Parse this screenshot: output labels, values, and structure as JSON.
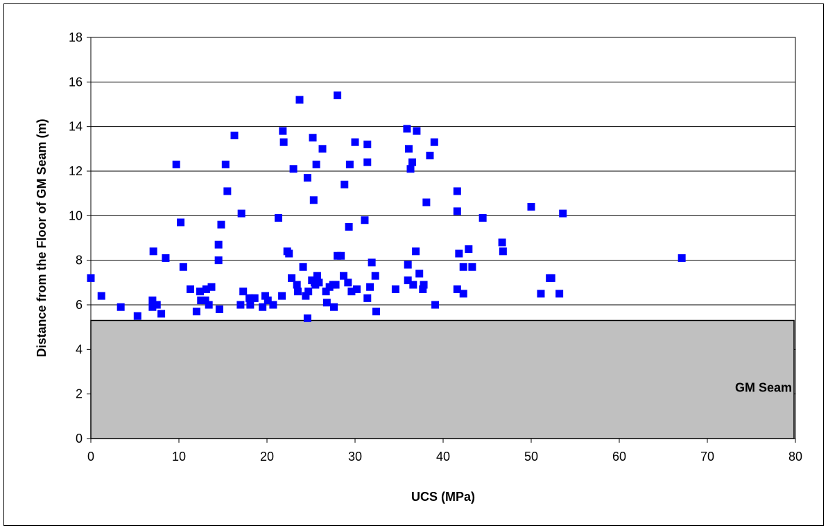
{
  "chart_data": {
    "type": "scatter",
    "title": "",
    "xlabel": "UCS (MPa)",
    "ylabel": "Distance from the Floor of GM Seam (m)",
    "xlim": [
      0,
      80
    ],
    "ylim": [
      0,
      18
    ],
    "xticks": [
      0,
      10,
      20,
      30,
      40,
      50,
      60,
      70,
      80
    ],
    "yticks": [
      0,
      2,
      4,
      6,
      8,
      10,
      12,
      14,
      16,
      18
    ],
    "grid": "horizontal",
    "legend": "none",
    "marker_color": "#0000ff",
    "region": {
      "label": "GM Seam",
      "y_top": 5.3,
      "color": "#c0c0c0"
    },
    "points": [
      [
        0.0,
        7.2
      ],
      [
        1.2,
        6.4
      ],
      [
        3.4,
        5.9
      ],
      [
        5.3,
        5.5
      ],
      [
        7.0,
        5.9
      ],
      [
        7.0,
        6.2
      ],
      [
        7.1,
        8.4
      ],
      [
        7.5,
        6.0
      ],
      [
        8.0,
        5.6
      ],
      [
        8.5,
        8.1
      ],
      [
        9.7,
        12.3
      ],
      [
        10.2,
        9.7
      ],
      [
        10.5,
        7.7
      ],
      [
        11.3,
        6.7
      ],
      [
        12.0,
        5.7
      ],
      [
        12.4,
        6.6
      ],
      [
        12.5,
        6.2
      ],
      [
        13.0,
        6.2
      ],
      [
        13.1,
        6.7
      ],
      [
        13.4,
        6.0
      ],
      [
        13.7,
        6.8
      ],
      [
        14.5,
        8.7
      ],
      [
        14.5,
        8.0
      ],
      [
        14.6,
        5.8
      ],
      [
        14.8,
        9.6
      ],
      [
        15.3,
        12.3
      ],
      [
        15.5,
        11.1
      ],
      [
        16.3,
        13.6
      ],
      [
        17.0,
        6.0
      ],
      [
        17.1,
        10.1
      ],
      [
        17.3,
        6.6
      ],
      [
        18.0,
        6.3
      ],
      [
        18.1,
        6.0
      ],
      [
        18.4,
        6.3
      ],
      [
        18.6,
        6.3
      ],
      [
        19.5,
        5.9
      ],
      [
        19.8,
        6.4
      ],
      [
        20.1,
        6.2
      ],
      [
        20.7,
        6.0
      ],
      [
        21.3,
        9.9
      ],
      [
        21.7,
        6.4
      ],
      [
        21.8,
        13.8
      ],
      [
        21.9,
        13.3
      ],
      [
        22.3,
        8.4
      ],
      [
        22.5,
        8.3
      ],
      [
        22.8,
        7.2
      ],
      [
        23.0,
        12.1
      ],
      [
        23.4,
        6.9
      ],
      [
        23.5,
        6.6
      ],
      [
        23.7,
        15.2
      ],
      [
        24.1,
        7.7
      ],
      [
        24.4,
        6.4
      ],
      [
        24.6,
        5.4
      ],
      [
        24.6,
        11.7
      ],
      [
        24.7,
        6.6
      ],
      [
        25.1,
        7.1
      ],
      [
        25.2,
        13.5
      ],
      [
        25.3,
        10.7
      ],
      [
        25.4,
        7.0
      ],
      [
        25.5,
        6.9
      ],
      [
        25.6,
        12.3
      ],
      [
        25.7,
        7.3
      ],
      [
        25.9,
        7.0
      ],
      [
        26.3,
        13.0
      ],
      [
        26.7,
        6.6
      ],
      [
        26.8,
        6.1
      ],
      [
        27.1,
        6.8
      ],
      [
        27.5,
        6.9
      ],
      [
        27.6,
        5.9
      ],
      [
        27.8,
        6.9
      ],
      [
        28.0,
        15.4
      ],
      [
        28.0,
        8.2
      ],
      [
        28.4,
        8.2
      ],
      [
        28.7,
        7.3
      ],
      [
        28.8,
        11.4
      ],
      [
        29.2,
        7.0
      ],
      [
        29.3,
        9.5
      ],
      [
        29.4,
        12.3
      ],
      [
        29.6,
        6.6
      ],
      [
        30.0,
        13.3
      ],
      [
        30.2,
        6.7
      ],
      [
        31.1,
        9.8
      ],
      [
        31.4,
        12.4
      ],
      [
        31.4,
        13.2
      ],
      [
        31.4,
        6.3
      ],
      [
        31.7,
        6.8
      ],
      [
        31.9,
        7.9
      ],
      [
        32.3,
        7.3
      ],
      [
        32.4,
        5.7
      ],
      [
        34.6,
        6.7
      ],
      [
        35.9,
        13.9
      ],
      [
        36.0,
        7.8
      ],
      [
        36.0,
        7.1
      ],
      [
        36.1,
        13.0
      ],
      [
        36.3,
        12.1
      ],
      [
        36.5,
        12.4
      ],
      [
        36.6,
        6.9
      ],
      [
        36.9,
        8.4
      ],
      [
        37.0,
        13.8
      ],
      [
        37.3,
        7.4
      ],
      [
        37.7,
        6.7
      ],
      [
        37.8,
        6.9
      ],
      [
        38.1,
        10.6
      ],
      [
        38.5,
        12.7
      ],
      [
        39.0,
        13.3
      ],
      [
        39.1,
        6.0
      ],
      [
        41.6,
        11.1
      ],
      [
        41.6,
        10.2
      ],
      [
        41.6,
        6.7
      ],
      [
        41.8,
        8.3
      ],
      [
        42.3,
        7.7
      ],
      [
        42.3,
        6.5
      ],
      [
        42.9,
        8.5
      ],
      [
        43.3,
        7.7
      ],
      [
        44.5,
        9.9
      ],
      [
        46.7,
        8.8
      ],
      [
        46.8,
        8.4
      ],
      [
        50.0,
        10.4
      ],
      [
        51.1,
        6.5
      ],
      [
        52.1,
        7.2
      ],
      [
        52.3,
        7.2
      ],
      [
        53.2,
        6.5
      ],
      [
        53.6,
        10.1
      ],
      [
        67.1,
        8.1
      ]
    ]
  }
}
